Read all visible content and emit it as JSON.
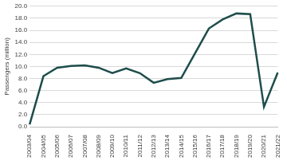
{
  "chart_data": {
    "type": "line",
    "y_label": "Passengers (million)",
    "categories": [
      "2003/04",
      "2004/05",
      "2005/06",
      "2006/07",
      "2007/08",
      "2008/09",
      "2009/10",
      "2010/11",
      "2011/12",
      "2012/13",
      "2013/14",
      "2014/15",
      "2015/16",
      "2016/17",
      "2017/18",
      "2018/19",
      "2019/20",
      "2020/21",
      "2021/22"
    ],
    "values": [
      0.4,
      8.4,
      9.8,
      10.1,
      10.2,
      9.8,
      8.9,
      9.7,
      8.9,
      7.3,
      7.9,
      8.1,
      12.2,
      16.3,
      17.8,
      18.8,
      18.7,
      3.3,
      9.0
    ],
    "color": "#1e4d4b",
    "ylim": [
      0,
      20
    ],
    "yticks": [
      {
        "value": 0,
        "label": "0.0"
      },
      {
        "value": 2,
        "label": "2.0"
      },
      {
        "value": 4,
        "label": "4.0"
      },
      {
        "value": 6,
        "label": "6.0"
      },
      {
        "value": 8,
        "label": "8.0"
      },
      {
        "value": 10,
        "label": "10.0"
      },
      {
        "value": 12,
        "label": "12.0"
      },
      {
        "value": 14,
        "label": "14.0"
      },
      {
        "value": 16,
        "label": "16.0"
      },
      {
        "value": 18,
        "label": "18.0"
      },
      {
        "value": 20,
        "label": "20.0"
      }
    ],
    "grid": true
  }
}
